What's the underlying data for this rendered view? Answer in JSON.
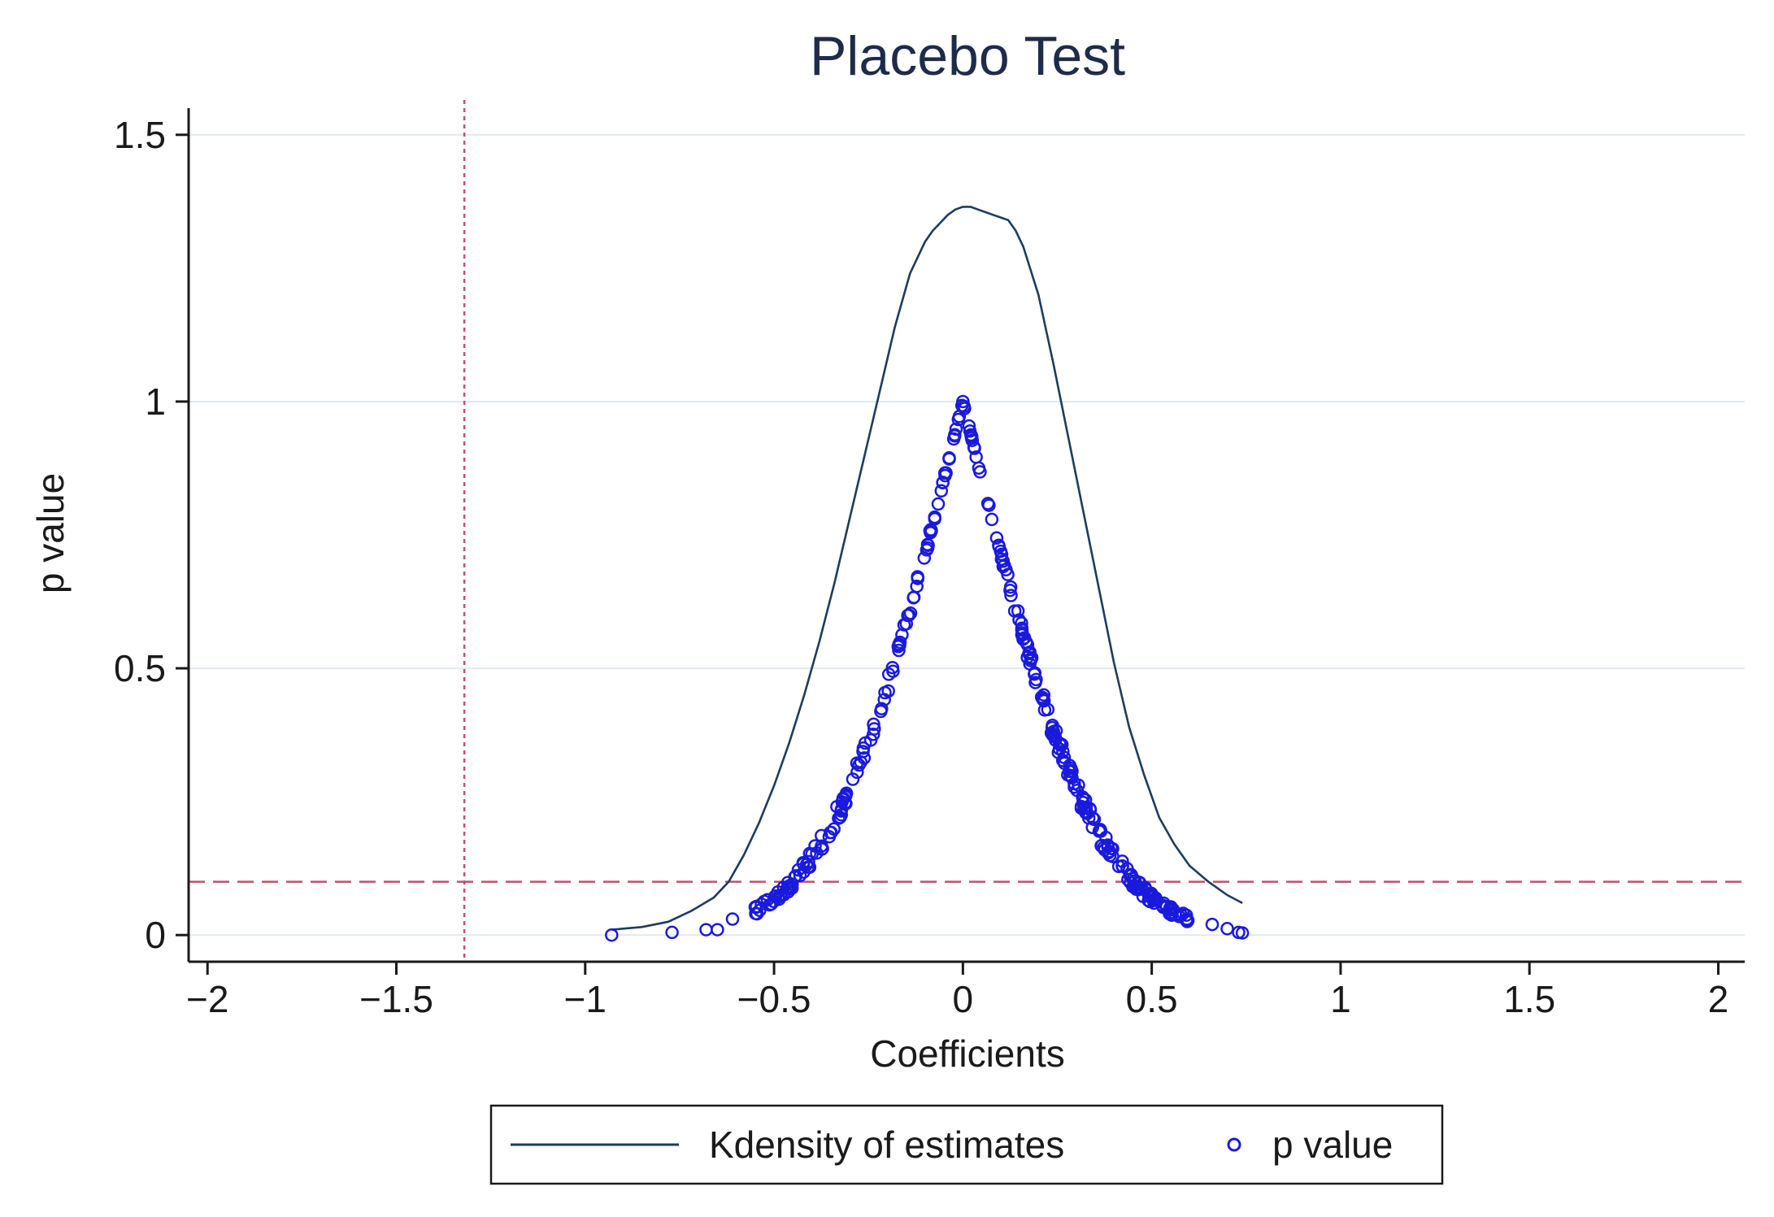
{
  "chart_data": {
    "type": "scatter",
    "title": "Placebo Test",
    "xlabel": "Coefficients",
    "ylabel": "p value",
    "xlim": [
      -2.05,
      2.07
    ],
    "ylim": [
      -0.05,
      1.55
    ],
    "xticks": [
      -2,
      -1.5,
      -1,
      -0.5,
      0,
      0.5,
      1,
      1.5,
      2
    ],
    "xtick_labels": [
      "−2",
      "−1.5",
      "−1",
      "−0.5",
      "0",
      "0.5",
      "1",
      "1.5",
      "2"
    ],
    "yticks": [
      0,
      0.5,
      1,
      1.5
    ],
    "ytick_labels": [
      "0",
      "0.5",
      "1",
      "1.5"
    ],
    "grid": true,
    "reference_lines": {
      "vertical_x": -1.32,
      "horizontal_y": 0.1
    },
    "colors": {
      "kdensity": "#1d3d5c",
      "points": "#1a1adc",
      "refline": "#c44e6e",
      "grid": "#dfe9ef",
      "axis": "#1a1a1a"
    },
    "legend": {
      "position": "bottom",
      "entries": [
        {
          "label": "Kdensity of estimates",
          "marker": "line"
        },
        {
          "label": "p value",
          "marker": "hollow-circle"
        }
      ]
    },
    "series": [
      {
        "name": "Kdensity of estimates",
        "type": "line",
        "x": [
          -0.93,
          -0.85,
          -0.78,
          -0.72,
          -0.66,
          -0.62,
          -0.58,
          -0.54,
          -0.5,
          -0.46,
          -0.42,
          -0.38,
          -0.34,
          -0.3,
          -0.26,
          -0.22,
          -0.18,
          -0.14,
          -0.1,
          -0.08,
          -0.06,
          -0.04,
          -0.02,
          0.0,
          0.02,
          0.04,
          0.06,
          0.08,
          0.1,
          0.12,
          0.14,
          0.16,
          0.2,
          0.24,
          0.28,
          0.32,
          0.36,
          0.4,
          0.44,
          0.48,
          0.52,
          0.56,
          0.6,
          0.65,
          0.7,
          0.74
        ],
        "y": [
          0.01,
          0.015,
          0.025,
          0.045,
          0.07,
          0.1,
          0.15,
          0.21,
          0.28,
          0.36,
          0.45,
          0.55,
          0.66,
          0.78,
          0.9,
          1.02,
          1.14,
          1.24,
          1.3,
          1.32,
          1.335,
          1.35,
          1.36,
          1.365,
          1.365,
          1.36,
          1.355,
          1.35,
          1.345,
          1.34,
          1.32,
          1.29,
          1.2,
          1.07,
          0.93,
          0.79,
          0.65,
          0.51,
          0.39,
          0.3,
          0.22,
          0.17,
          0.13,
          0.1,
          0.075,
          0.06
        ]
      },
      {
        "name": "p value",
        "type": "scatter",
        "generator": "two-sided p-values of placebo coefficients; p = 1 at 0, decaying toward 0 at both tails",
        "x_range": [
          -0.93,
          0.74
        ],
        "peak": {
          "x": 0.0,
          "y": 1.0
        },
        "tail_points": [
          {
            "x": -0.93,
            "y": 0.0
          },
          {
            "x": -0.77,
            "y": 0.005
          },
          {
            "x": -0.68,
            "y": 0.01
          },
          {
            "x": -0.65,
            "y": 0.01
          },
          {
            "x": -0.61,
            "y": 0.03
          },
          {
            "x": 0.66,
            "y": 0.02
          },
          {
            "x": 0.7,
            "y": 0.012
          },
          {
            "x": 0.73,
            "y": 0.005
          },
          {
            "x": 0.74,
            "y": 0.004
          }
        ]
      }
    ]
  }
}
